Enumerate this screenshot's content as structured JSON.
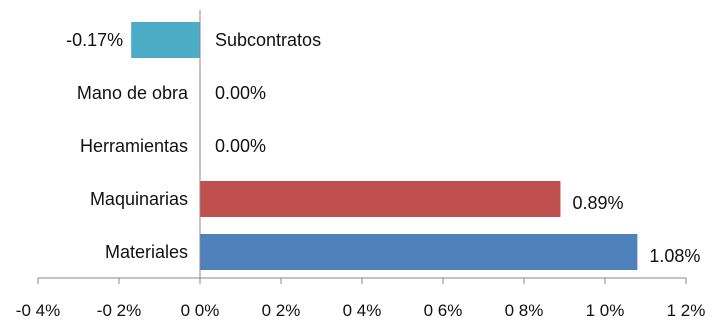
{
  "chart_data": {
    "type": "bar",
    "orientation": "horizontal",
    "categories": [
      "Subcontratos",
      "Mano de obra",
      "Herramientas",
      "Maquinarias",
      "Materiales"
    ],
    "values": [
      -0.17,
      0.0,
      0.0,
      0.89,
      1.08
    ],
    "data_labels": [
      "-0.17%",
      "0.00%",
      "0.00%",
      "0.89%",
      "1.08%"
    ],
    "colors": [
      "#4bacc6",
      "#4bacc6",
      "#4bacc6",
      "#c0504d",
      "#4f81bd"
    ],
    "xlim": [
      -0.4,
      1.2
    ],
    "xticks": [
      -0.4,
      -0.2,
      0.0,
      0.2,
      0.4,
      0.6,
      0.8,
      1.0,
      1.2
    ],
    "xtick_labels": [
      "-0 4%",
      "-0 2%",
      "0 0%",
      "0 2%",
      "0 4%",
      "0 6%",
      "0 8%",
      "1 0%",
      "1 2%"
    ],
    "title": "",
    "xlabel": "",
    "ylabel": "",
    "grid": false,
    "legend": false
  }
}
